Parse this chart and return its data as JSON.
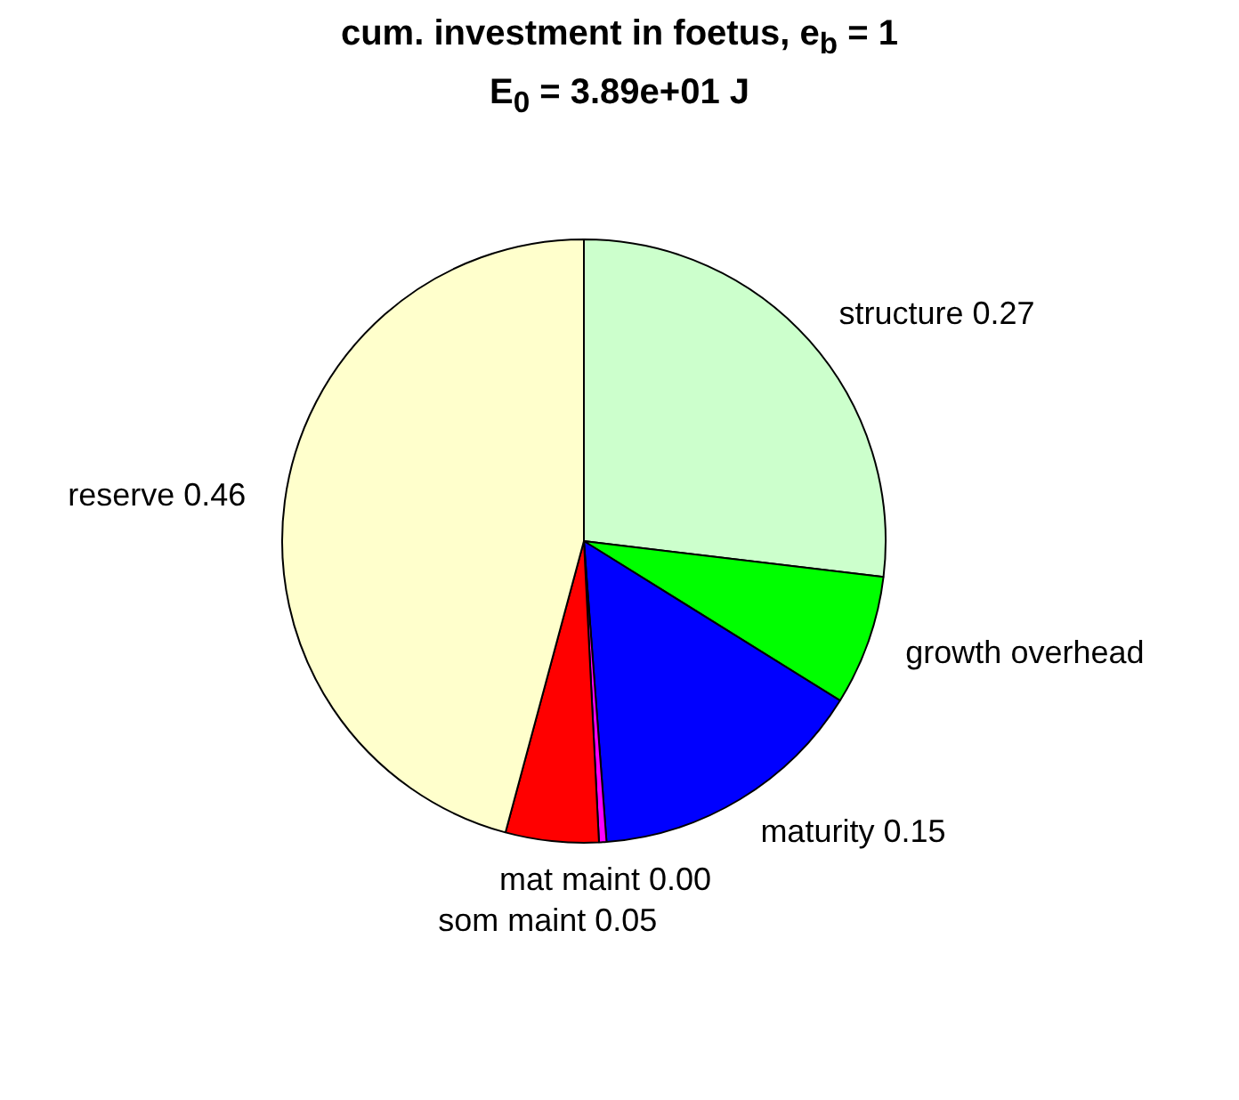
{
  "chart_data": {
    "type": "pie",
    "title": "cum. investment in foetus, e$_{b}$ = 1",
    "subtitle": "E$_{0}$ = 3.89e+01 J",
    "categories": [
      "structure",
      "growth overhead",
      "maturity",
      "mat maint",
      "som maint",
      "reserve"
    ],
    "values": [
      0.27,
      0.07,
      0.15,
      0.004,
      0.05,
      0.46
    ],
    "value_labels": [
      "0.27",
      null,
      "0.15",
      "0.00",
      "0.05",
      "0.46"
    ],
    "colors": [
      "#ccffcc",
      "#00ff00",
      "#0000ff",
      "#ff00ff",
      "#ff0000",
      "#ffffcc"
    ],
    "legend": false
  }
}
